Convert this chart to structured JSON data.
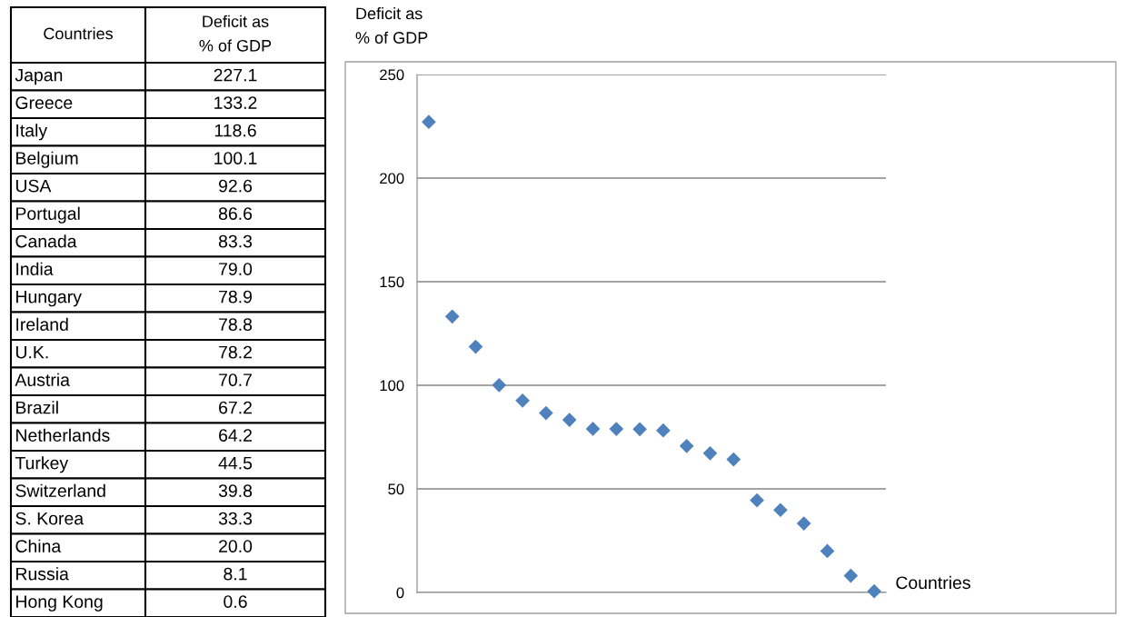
{
  "chart_data": [
    {
      "type": "other",
      "xlabel": "Countries",
      "ylabel": "Deficit as\n% of GDP",
      "categories": [
        "Japan",
        "Greece",
        "Italy",
        "Belgium",
        "USA",
        "Portugal",
        "Canada",
        "India",
        "Hungary",
        "Ireland",
        "U.K.",
        "Austria",
        "Brazil",
        "Netherlands",
        "Turkey",
        "Switzerland",
        "S. Korea",
        "China",
        "Russia",
        "Hong Kong"
      ],
      "values": [
        227.1,
        133.2,
        118.6,
        100.1,
        92.6,
        86.6,
        83.3,
        79.0,
        78.9,
        78.8,
        78.2,
        70.7,
        67.2,
        64.2,
        44.5,
        39.8,
        33.3,
        20.0,
        8.1,
        0.6
      ],
      "value_labels": [
        "227.1",
        "133.2",
        "118.6",
        "100.1",
        "92.6",
        "86.6",
        "83.3",
        "79.0",
        "78.9",
        "78.8",
        "78.2",
        "70.7",
        "67.2",
        "64.2",
        "44.5",
        "39.8",
        "33.3",
        "20.0",
        "8.1",
        "0.6"
      ]
    },
    {
      "type": "scatter",
      "xlabel": "Countries",
      "ylabel": "Deficit as\n% of GDP",
      "categories": [
        null,
        null,
        null,
        null,
        null,
        null,
        null,
        null,
        null,
        null,
        null,
        null,
        null,
        null,
        null,
        null,
        null,
        null,
        null,
        null
      ],
      "values": [
        227.1,
        133.2,
        118.6,
        100.1,
        92.6,
        86.6,
        83.3,
        79.0,
        78.9,
        78.8,
        78.2,
        70.7,
        67.2,
        64.2,
        44.5,
        39.8,
        33.3,
        20.0,
        8.1,
        0.6
      ],
      "color": "#4f81bd",
      "marker": "diamond",
      "ylim": [
        0,
        250
      ],
      "yticks": [
        0,
        50,
        100,
        150,
        200,
        250
      ],
      "grid": "y",
      "legend": false,
      "tick_labels": "y"
    }
  ]
}
